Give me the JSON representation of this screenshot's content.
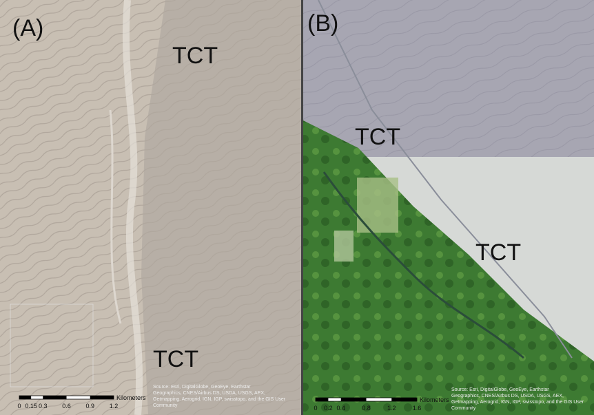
{
  "panels": [
    {
      "label": "(A)",
      "annotations": [
        "TCT",
        "TCT"
      ],
      "scale_bar": {
        "ticks": [
          "0",
          "0.15",
          "0.3",
          "0.6",
          "0.9",
          "1.2"
        ],
        "unit": "Kilometers"
      },
      "attribution": [
        "Source: Esri, DigitalGlobe, GeoEye, Earthstar",
        "Geographics, CNES/Airbus DS, USDA, USGS, AEX,",
        "Getmapping, Aerogrid, IGN, IGP, swisstopo, and the GIS User",
        "Community"
      ]
    },
    {
      "label": "(B)",
      "annotations": [
        "TCT",
        "TCT"
      ],
      "scale_bar": {
        "ticks": [
          "0",
          "0.2",
          "0.4",
          "0.8",
          "1.2",
          "1.6"
        ],
        "unit": "Kilometers"
      },
      "attribution": [
        "Source: Esri, DigitalGlobe, GeoEye, Earthstar",
        "Geographics, CNES/Airbus DS, USDA, USGS, AEX,",
        "Getmapping, Aerogrid, IGN, IGP, swisstopo, and the GIS User",
        "Community"
      ]
    }
  ]
}
